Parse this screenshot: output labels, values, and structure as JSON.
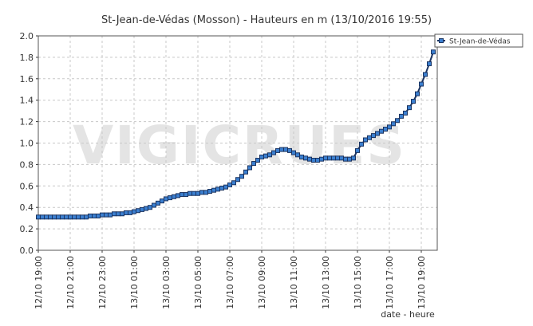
{
  "chart_data": {
    "type": "line",
    "title": "St-Jean-de-Védas (Mosson) - Hauteurs en m (13/10/2016 19:55)",
    "xlabel": "date - heure",
    "watermark": "VIGICRUES",
    "x": [
      "12/10 19:00",
      "12/10 19:15",
      "12/10 19:30",
      "12/10 19:45",
      "12/10 20:00",
      "12/10 20:15",
      "12/10 20:30",
      "12/10 20:45",
      "12/10 21:00",
      "12/10 21:15",
      "12/10 21:30",
      "12/10 21:45",
      "12/10 22:00",
      "12/10 22:15",
      "12/10 22:30",
      "12/10 22:45",
      "12/10 23:00",
      "12/10 23:15",
      "12/10 23:30",
      "12/10 23:45",
      "13/10 00:00",
      "13/10 00:15",
      "13/10 00:30",
      "13/10 00:45",
      "13/10 01:00",
      "13/10 01:15",
      "13/10 01:30",
      "13/10 01:45",
      "13/10 02:00",
      "13/10 02:15",
      "13/10 02:30",
      "13/10 02:45",
      "13/10 03:00",
      "13/10 03:15",
      "13/10 03:30",
      "13/10 03:45",
      "13/10 04:00",
      "13/10 04:15",
      "13/10 04:30",
      "13/10 04:45",
      "13/10 05:00",
      "13/10 05:15",
      "13/10 05:30",
      "13/10 05:45",
      "13/10 06:00",
      "13/10 06:15",
      "13/10 06:30",
      "13/10 06:45",
      "13/10 07:00",
      "13/10 07:15",
      "13/10 07:30",
      "13/10 07:45",
      "13/10 08:00",
      "13/10 08:15",
      "13/10 08:30",
      "13/10 08:45",
      "13/10 09:00",
      "13/10 09:15",
      "13/10 09:30",
      "13/10 09:45",
      "13/10 10:00",
      "13/10 10:15",
      "13/10 10:30",
      "13/10 10:45",
      "13/10 11:00",
      "13/10 11:15",
      "13/10 11:30",
      "13/10 11:45",
      "13/10 12:00",
      "13/10 12:15",
      "13/10 12:30",
      "13/10 12:45",
      "13/10 13:00",
      "13/10 13:15",
      "13/10 13:30",
      "13/10 13:45",
      "13/10 14:00",
      "13/10 14:15",
      "13/10 14:30",
      "13/10 14:45",
      "13/10 15:00",
      "13/10 15:15",
      "13/10 15:30",
      "13/10 15:45",
      "13/10 16:00",
      "13/10 16:15",
      "13/10 16:30",
      "13/10 16:45",
      "13/10 17:00",
      "13/10 17:15",
      "13/10 17:30",
      "13/10 17:45",
      "13/10 18:00",
      "13/10 18:15",
      "13/10 18:30",
      "13/10 18:45",
      "13/10 19:00",
      "13/10 19:15",
      "13/10 19:30",
      "13/10 19:45"
    ],
    "series": [
      {
        "name": "St-Jean-de-Védas",
        "color": "#3b7fd0",
        "line_color": "#1a3360",
        "values": [
          0.31,
          0.31,
          0.31,
          0.31,
          0.31,
          0.31,
          0.31,
          0.31,
          0.31,
          0.31,
          0.31,
          0.31,
          0.31,
          0.32,
          0.32,
          0.32,
          0.33,
          0.33,
          0.33,
          0.34,
          0.34,
          0.34,
          0.35,
          0.35,
          0.36,
          0.37,
          0.38,
          0.39,
          0.4,
          0.42,
          0.44,
          0.46,
          0.48,
          0.49,
          0.5,
          0.51,
          0.52,
          0.52,
          0.53,
          0.53,
          0.53,
          0.54,
          0.54,
          0.55,
          0.56,
          0.57,
          0.58,
          0.59,
          0.61,
          0.63,
          0.66,
          0.69,
          0.73,
          0.77,
          0.81,
          0.84,
          0.87,
          0.88,
          0.89,
          0.91,
          0.93,
          0.94,
          0.94,
          0.93,
          0.91,
          0.89,
          0.87,
          0.86,
          0.85,
          0.84,
          0.84,
          0.85,
          0.86,
          0.86,
          0.86,
          0.86,
          0.86,
          0.85,
          0.85,
          0.86,
          0.93,
          0.99,
          1.03,
          1.05,
          1.07,
          1.09,
          1.11,
          1.13,
          1.15,
          1.18,
          1.21,
          1.25,
          1.28,
          1.33,
          1.39,
          1.46,
          1.55,
          1.64,
          1.74,
          1.85
        ]
      }
    ],
    "xlim": [
      "12/10 19:00",
      "13/10 20:00"
    ],
    "xticks": [
      "12/10 19:00",
      "12/10 21:00",
      "12/10 23:00",
      "13/10 01:00",
      "13/10 03:00",
      "13/10 05:00",
      "13/10 07:00",
      "13/10 09:00",
      "13/10 11:00",
      "13/10 13:00",
      "13/10 15:00",
      "13/10 17:00",
      "13/10 19:00"
    ],
    "ylim": [
      0,
      2
    ],
    "yticks": [
      {
        "value": 0,
        "label": "0.0"
      },
      0.2,
      0.4,
      0.6,
      0.8,
      {
        "value": 1,
        "label": "1.0"
      },
      1.2,
      1.4,
      1.6,
      1.8,
      {
        "value": 2,
        "label": "2.0"
      }
    ],
    "grid": true,
    "legend": "top-right"
  }
}
